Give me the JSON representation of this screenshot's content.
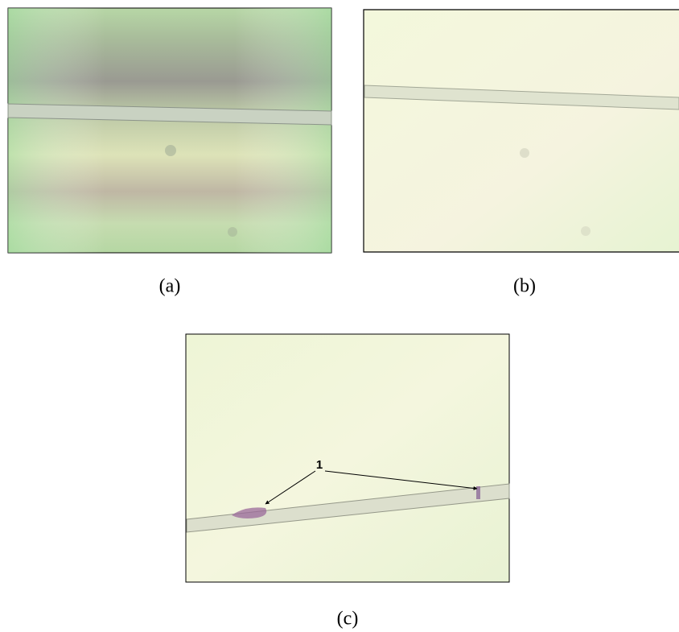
{
  "figure": {
    "panels": [
      {
        "label": "(a)"
      },
      {
        "label": "(b)"
      },
      {
        "label": "(c)",
        "annotation": "1"
      }
    ]
  }
}
